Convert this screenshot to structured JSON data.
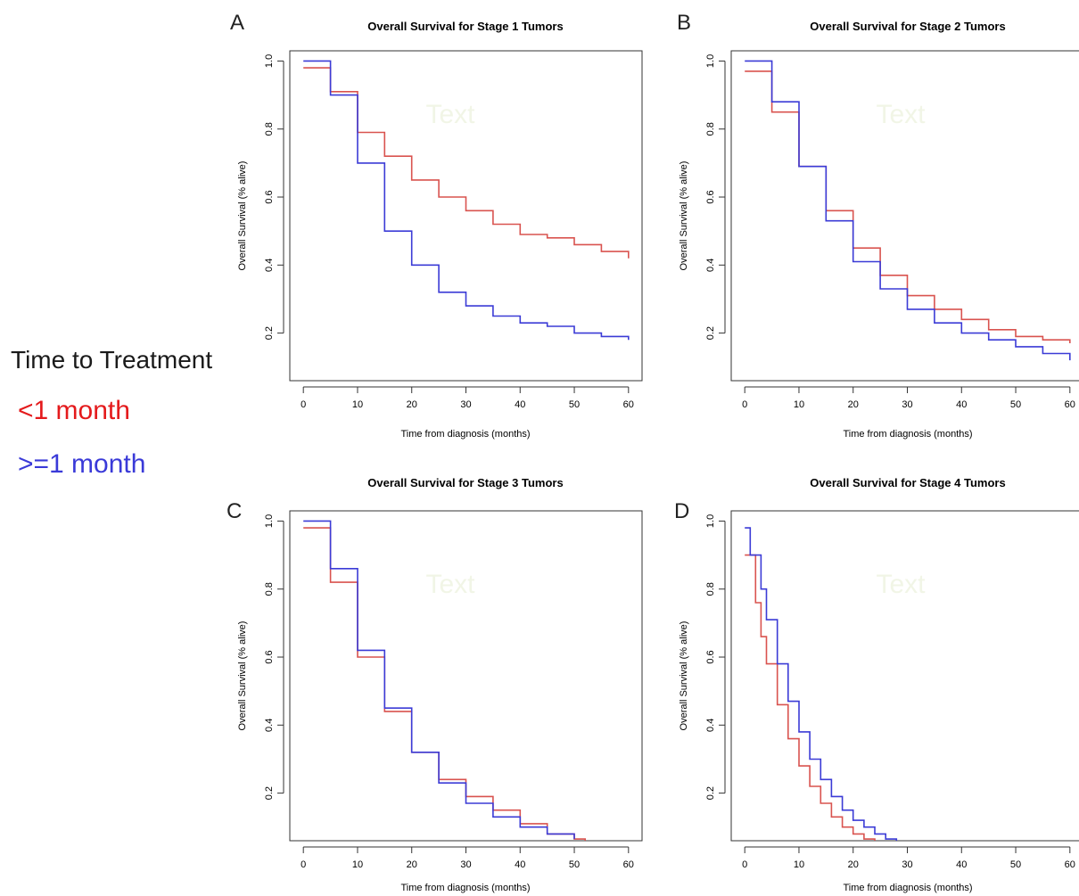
{
  "legend": {
    "title": "Time to Treatment",
    "items": [
      {
        "label": "<1 month",
        "color": "#e41a1c"
      },
      {
        "label": ">=1 month",
        "color": "#3a3ad8"
      }
    ]
  },
  "chart_data": [
    {
      "type": "line",
      "step": true,
      "panel_label": "A",
      "title": "Overall Survival for Stage 1 Tumors",
      "xlabel": "Time from diagnosis (months)",
      "ylabel": "Overall Survival (% alive)",
      "xlim": [
        -2.5,
        62.5
      ],
      "ylim": [
        0.06,
        1.03
      ],
      "xticks": [
        0,
        10,
        20,
        30,
        40,
        50,
        60
      ],
      "yticks": [
        0.2,
        0.4,
        0.6,
        0.8,
        1.0
      ],
      "watermark": "Text",
      "series": [
        {
          "name": "<1 month",
          "color": "#d9534f",
          "x": [
            0,
            5,
            10,
            15,
            20,
            25,
            30,
            35,
            40,
            45,
            50,
            55,
            60
          ],
          "y": [
            0.98,
            0.91,
            0.79,
            0.72,
            0.65,
            0.6,
            0.56,
            0.52,
            0.49,
            0.48,
            0.46,
            0.44,
            0.42
          ]
        },
        {
          "name": ">=1 month",
          "color": "#3b3bd6",
          "x": [
            0,
            5,
            10,
            15,
            20,
            25,
            30,
            35,
            40,
            45,
            50,
            55,
            60
          ],
          "y": [
            1.0,
            0.9,
            0.7,
            0.5,
            0.4,
            0.32,
            0.28,
            0.25,
            0.23,
            0.22,
            0.2,
            0.19,
            0.18
          ]
        }
      ]
    },
    {
      "type": "line",
      "step": true,
      "panel_label": "B",
      "title": "Overall Survival for Stage 2 Tumors",
      "xlabel": "Time from diagnosis (months)",
      "ylabel": "Overall Survival (% alive)",
      "xlim": [
        -2.5,
        62.5
      ],
      "ylim": [
        0.06,
        1.03
      ],
      "xticks": [
        0,
        10,
        20,
        30,
        40,
        50,
        60
      ],
      "yticks": [
        0.2,
        0.4,
        0.6,
        0.8,
        1.0
      ],
      "watermark": "Text",
      "series": [
        {
          "name": "<1 month",
          "color": "#d9534f",
          "x": [
            0,
            5,
            10,
            15,
            20,
            25,
            30,
            35,
            40,
            45,
            50,
            55,
            60
          ],
          "y": [
            0.97,
            0.85,
            0.69,
            0.56,
            0.45,
            0.37,
            0.31,
            0.27,
            0.24,
            0.21,
            0.19,
            0.18,
            0.17
          ]
        },
        {
          "name": ">=1 month",
          "color": "#3b3bd6",
          "x": [
            0,
            5,
            10,
            15,
            20,
            25,
            30,
            35,
            40,
            45,
            50,
            55,
            60
          ],
          "y": [
            1.0,
            0.88,
            0.69,
            0.53,
            0.41,
            0.33,
            0.27,
            0.23,
            0.2,
            0.18,
            0.16,
            0.14,
            0.12
          ]
        }
      ]
    },
    {
      "type": "line",
      "step": true,
      "panel_label": "C",
      "title": "Overall Survival for Stage 3 Tumors",
      "xlabel": "Time from diagnosis (months)",
      "ylabel": "Overall Survival (% alive)",
      "xlim": [
        -2.5,
        62.5
      ],
      "ylim": [
        0.06,
        1.03
      ],
      "xticks": [
        0,
        10,
        20,
        30,
        40,
        50,
        60
      ],
      "yticks": [
        0.2,
        0.4,
        0.6,
        0.8,
        1.0
      ],
      "watermark": "Text",
      "series": [
        {
          "name": "<1 month",
          "color": "#d9534f",
          "x": [
            0,
            5,
            10,
            15,
            20,
            25,
            30,
            35,
            40,
            45,
            50,
            52
          ],
          "y": [
            0.98,
            0.82,
            0.6,
            0.44,
            0.32,
            0.24,
            0.19,
            0.15,
            0.11,
            0.08,
            0.065,
            0.06
          ]
        },
        {
          "name": ">=1 month",
          "color": "#3b3bd6",
          "x": [
            0,
            5,
            10,
            15,
            20,
            25,
            30,
            35,
            40,
            45,
            50
          ],
          "y": [
            1.0,
            0.86,
            0.62,
            0.45,
            0.32,
            0.23,
            0.17,
            0.13,
            0.1,
            0.08,
            0.065
          ]
        }
      ]
    },
    {
      "type": "line",
      "step": true,
      "panel_label": "D",
      "title": "Overall Survival for Stage 4 Tumors",
      "xlabel": "Time from diagnosis (months)",
      "ylabel": "Overall Survival (% alive)",
      "xlim": [
        -2.5,
        62.5
      ],
      "ylim": [
        0.06,
        1.03
      ],
      "xticks": [
        0,
        10,
        20,
        30,
        40,
        50,
        60
      ],
      "yticks": [
        0.2,
        0.4,
        0.6,
        0.8,
        1.0
      ],
      "watermark": "Text",
      "series": [
        {
          "name": "<1 month",
          "color": "#d9534f",
          "x": [
            0,
            1,
            2,
            3,
            4,
            6,
            8,
            10,
            12,
            14,
            16,
            18,
            20,
            22,
            24
          ],
          "y": [
            0.9,
            0.9,
            0.76,
            0.66,
            0.58,
            0.46,
            0.36,
            0.28,
            0.22,
            0.17,
            0.13,
            0.1,
            0.08,
            0.065,
            0.06
          ]
        },
        {
          "name": ">=1 month",
          "color": "#3b3bd6",
          "x": [
            0,
            1,
            2,
            3,
            4,
            6,
            8,
            10,
            12,
            14,
            16,
            18,
            20,
            22,
            24,
            26,
            28
          ],
          "y": [
            0.98,
            0.9,
            0.9,
            0.8,
            0.71,
            0.58,
            0.47,
            0.38,
            0.3,
            0.24,
            0.19,
            0.15,
            0.12,
            0.1,
            0.08,
            0.065,
            0.06
          ]
        }
      ]
    }
  ]
}
